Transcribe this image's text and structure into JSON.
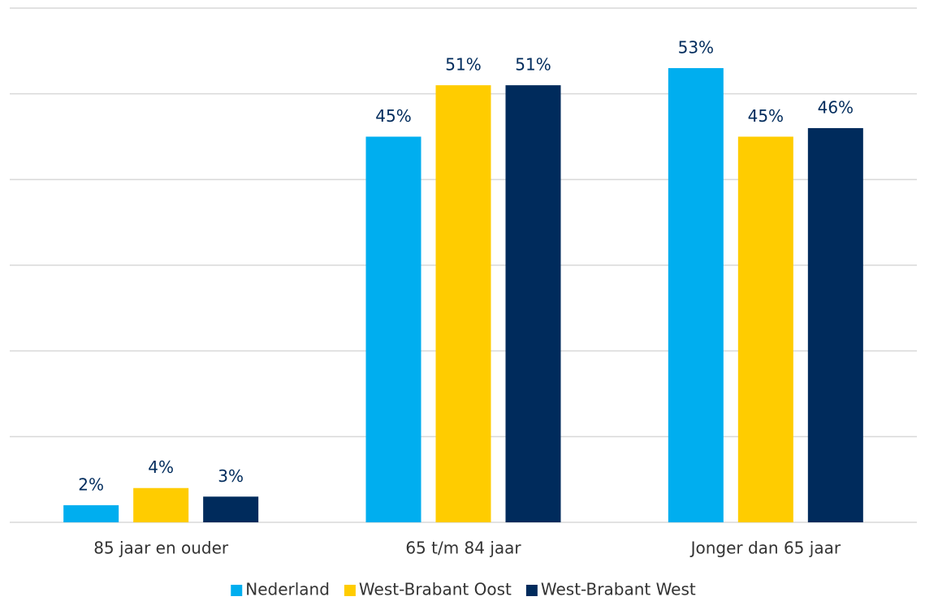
{
  "chart_data": {
    "type": "bar",
    "categories": [
      "85 jaar en ouder",
      "65 t/m 84 jaar",
      "Jonger dan 65 jaar"
    ],
    "series": [
      {
        "name": "Nederland",
        "color": "#00aeef",
        "values": [
          2,
          45,
          53
        ],
        "value_labels": [
          "2%",
          "45%",
          "53%"
        ]
      },
      {
        "name": "West-Brabant Oost",
        "color": "#ffcc00",
        "values": [
          4,
          51,
          45
        ],
        "value_labels": [
          "4%",
          "51%",
          "45%"
        ]
      },
      {
        "name": "West-Brabant West",
        "color": "#002b5c",
        "values": [
          3,
          51,
          46
        ],
        "value_labels": [
          "3%",
          "51%",
          "46%"
        ]
      }
    ],
    "ylim": [
      0,
      60
    ],
    "yticks": [
      0,
      10,
      20,
      30,
      40,
      50,
      60
    ],
    "grid": true,
    "legend": "bottom"
  }
}
